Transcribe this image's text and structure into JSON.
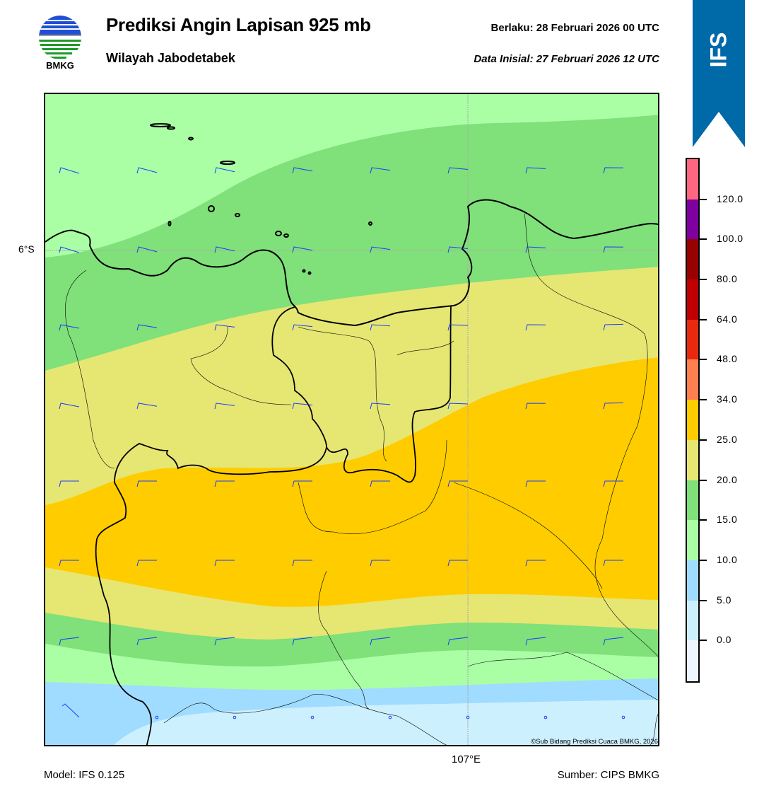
{
  "header": {
    "title": "Prediksi Angin Lapisan 925 mb",
    "subtitle": "Wilayah Jabodetabek",
    "valid": "Berlaku:  28 Februari 2026 00 UTC",
    "initial": "Data Inisial:  27 Februari 2026 12 UTC",
    "logo_text": "BMKG",
    "ribbon_text": "IFS",
    "ribbon_color": "#0069a8"
  },
  "map": {
    "lat_label": "6°S",
    "lon_label": "107°E",
    "copyright": "©Sub Bidang Prediksi Cuaca BMKG, 2026",
    "barb_color": "#1a3cff"
  },
  "colorbar": {
    "labels": [
      "120.0",
      "100.0",
      "80.0",
      "64.0",
      "48.0",
      "34.0",
      "25.0",
      "20.0",
      "15.0",
      "10.0",
      "5.0",
      "0.0"
    ],
    "colors": [
      "#ff6680",
      "#7f00a0",
      "#990000",
      "#c00000",
      "#e8290f",
      "#ff7f50",
      "#ffcc00",
      "#e6e673",
      "#80e07a",
      "#aaffa5",
      "#a0dcff",
      "#cdf0ff",
      "#eef7ff"
    ]
  },
  "footer": {
    "model": "Model: IFS 0.125",
    "source": "Sumber: CIPS BMKG"
  }
}
